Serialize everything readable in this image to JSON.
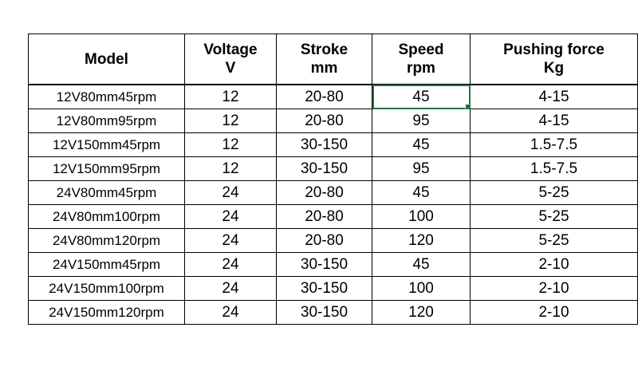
{
  "table": {
    "headers": [
      {
        "lines": [
          "Model"
        ]
      },
      {
        "lines": [
          "Voltage",
          "V"
        ]
      },
      {
        "lines": [
          "Stroke",
          "mm"
        ]
      },
      {
        "lines": [
          "Speed",
          "rpm"
        ]
      },
      {
        "lines": [
          "Pushing force",
          "Kg"
        ]
      }
    ],
    "rows": [
      {
        "model": "12V80mm45rpm",
        "voltage": "12",
        "stroke": "20-80",
        "speed": "45",
        "force": "4-15"
      },
      {
        "model": "12V80mm95rpm",
        "voltage": "12",
        "stroke": "20-80",
        "speed": "95",
        "force": "4-15"
      },
      {
        "model": "12V150mm45rpm",
        "voltage": "12",
        "stroke": "30-150",
        "speed": "45",
        "force": "1.5-7.5"
      },
      {
        "model": "12V150mm95rpm",
        "voltage": "12",
        "stroke": "30-150",
        "speed": "95",
        "force": "1.5-7.5"
      },
      {
        "model": "24V80mm45rpm",
        "voltage": "24",
        "stroke": "20-80",
        "speed": "45",
        "force": "5-25"
      },
      {
        "model": "24V80mm100rpm",
        "voltage": "24",
        "stroke": "20-80",
        "speed": "100",
        "force": "5-25"
      },
      {
        "model": "24V80mm120rpm",
        "voltage": "24",
        "stroke": "20-80",
        "speed": "120",
        "force": "5-25"
      },
      {
        "model": "24V150mm45rpm",
        "voltage": "24",
        "stroke": "30-150",
        "speed": "45",
        "force": "2-10"
      },
      {
        "model": "24V150mm100rpm",
        "voltage": "24",
        "stroke": "30-150",
        "speed": "100",
        "force": "2-10"
      },
      {
        "model": "24V150mm120rpm",
        "voltage": "24",
        "stroke": "30-150",
        "speed": "120",
        "force": "2-10"
      }
    ]
  },
  "selection": {
    "row": 0,
    "column": "speed",
    "color": "#217346"
  }
}
